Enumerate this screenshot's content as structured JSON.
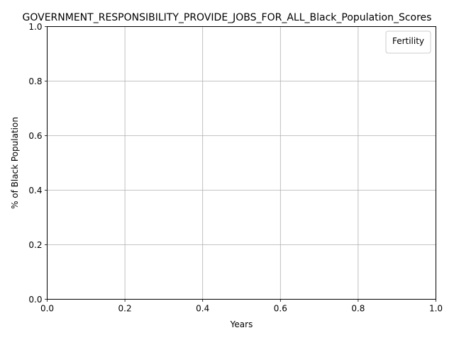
{
  "chart_data": {
    "type": "line",
    "title": "GOVERNMENT_RESPONSIBILITY_PROVIDE_JOBS_FOR_ALL_Black_Population_Scores",
    "xlabel": "Years",
    "ylabel": "% of Black Population",
    "xlim": [
      0.0,
      1.0
    ],
    "ylim": [
      0.0,
      1.0
    ],
    "xticks": [
      "0.0",
      "0.2",
      "0.4",
      "0.6",
      "0.8",
      "1.0"
    ],
    "yticks": [
      "0.0",
      "0.2",
      "0.4",
      "0.6",
      "0.8",
      "1.0"
    ],
    "grid": true,
    "legend": {
      "title": "Fertility",
      "placement": "top-right",
      "entries": []
    },
    "series": []
  }
}
